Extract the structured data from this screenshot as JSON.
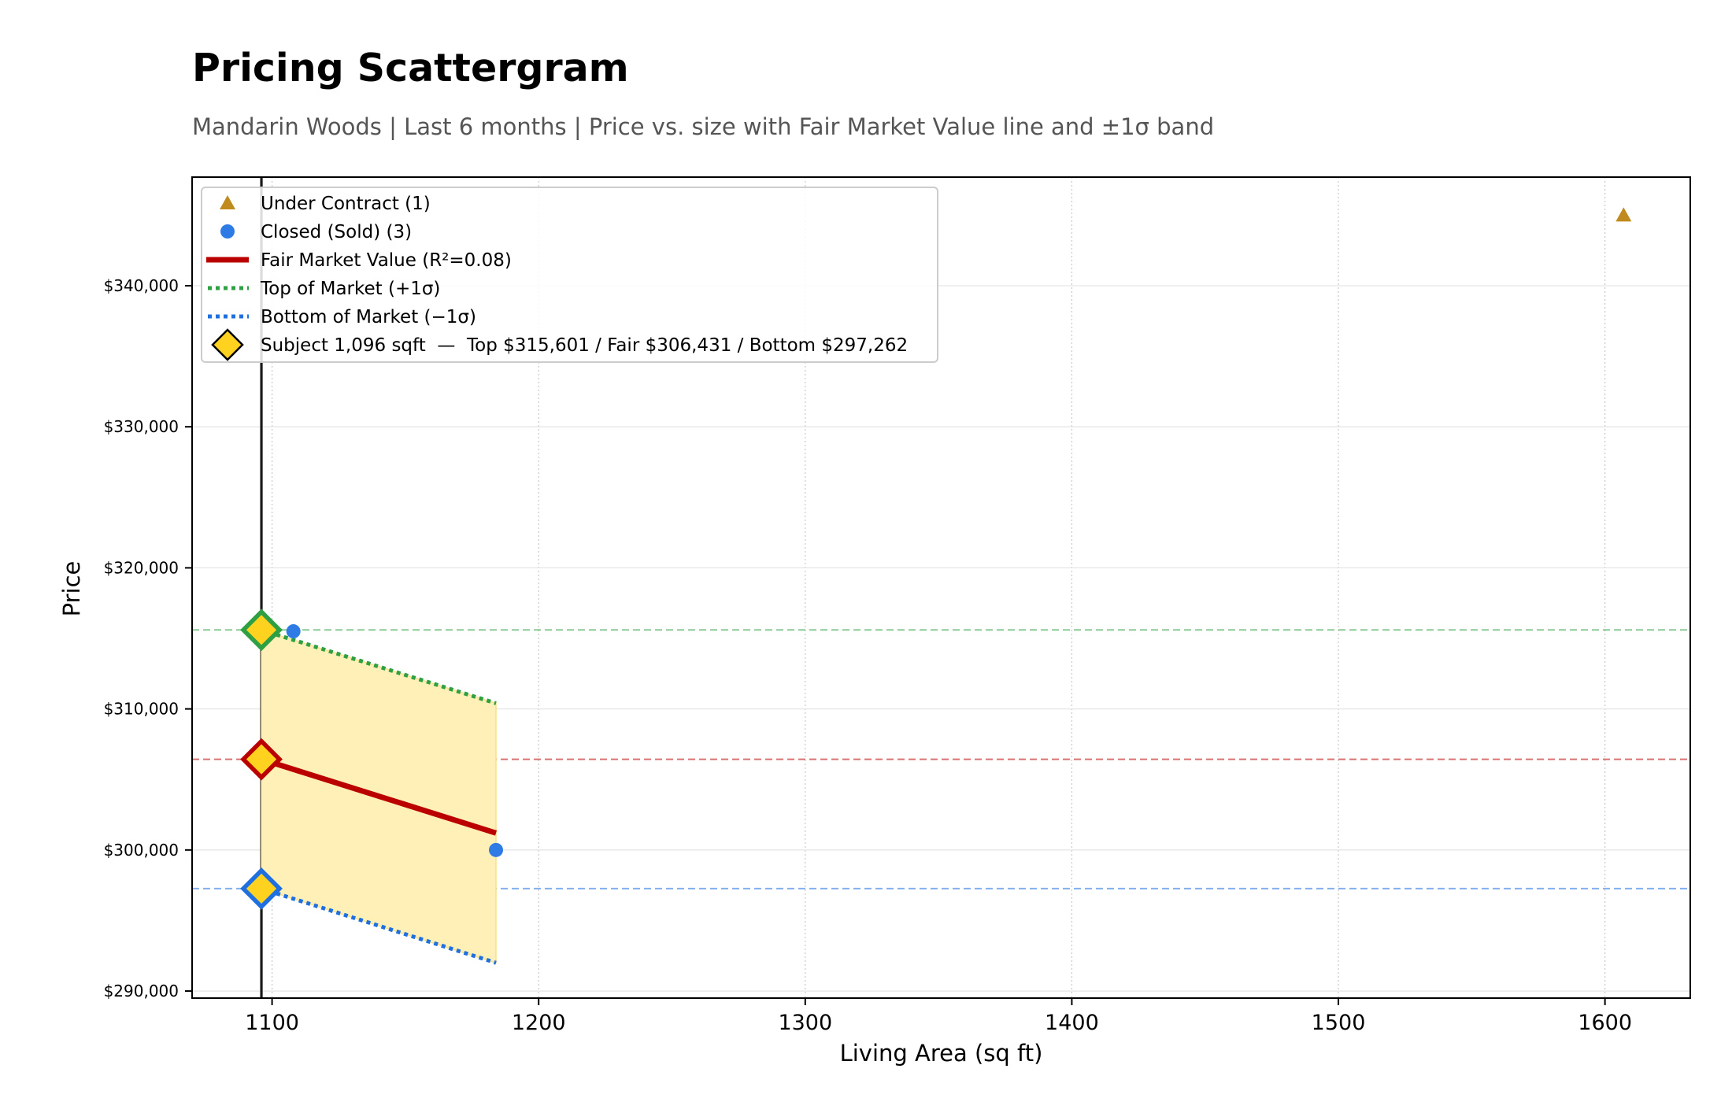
{
  "header": {
    "title": "Pricing Scattergram",
    "subtitle": "Mandarin Woods  |  Last 6 months  |  Price vs. size with Fair Market Value line and ±1σ band"
  },
  "colors": {
    "under_contract": "#c08a1e",
    "closed": "#2f7be6",
    "fair": "#bb0000",
    "top": "#2ea043",
    "bottom": "#1f6fe0",
    "subject_fill": "#ffd21f",
    "band": "#fff0b8"
  },
  "chart_data": {
    "type": "scatter",
    "title": "Pricing Scattergram",
    "xlabel": "Living Area (sq ft)",
    "ylabel": "Price",
    "xlim": [
      1070,
      1632
    ],
    "ylim": [
      289500,
      347700
    ],
    "x_ticks": [
      1100,
      1200,
      1300,
      1400,
      1500,
      1600
    ],
    "y_ticks": [
      290000,
      300000,
      310000,
      320000,
      330000,
      340000
    ],
    "x_tick_labels": [
      "1100",
      "1200",
      "1300",
      "1400",
      "1500",
      "1600"
    ],
    "y_tick_labels": [
      "$290,000",
      "$300,000",
      "$310,000",
      "$320,000",
      "$330,000",
      "$340,000"
    ],
    "grid": true,
    "legend_position": "top-left",
    "series": [
      {
        "name": "Under Contract (1)",
        "kind": "scatter",
        "marker": "triangle",
        "points": [
          {
            "x": 1607,
            "y": 345000
          }
        ]
      },
      {
        "name": "Closed (Sold) (3)",
        "kind": "scatter",
        "marker": "circle",
        "points": [
          {
            "x": 1108,
            "y": 315500
          },
          {
            "x": 1184,
            "y": 300000
          },
          {
            "x": 1096,
            "y": 306431
          }
        ]
      },
      {
        "name": "Fair Market Value (R²=0.08)",
        "kind": "line",
        "style": "solid",
        "points": [
          {
            "x": 1096,
            "y": 306431
          },
          {
            "x": 1184,
            "y": 301200
          }
        ]
      },
      {
        "name": "Top of Market (+1σ)",
        "kind": "line",
        "style": "dotted",
        "points": [
          {
            "x": 1096,
            "y": 315601
          },
          {
            "x": 1184,
            "y": 310400
          }
        ]
      },
      {
        "name": "Bottom of Market (−1σ)",
        "kind": "line",
        "style": "dotted",
        "points": [
          {
            "x": 1096,
            "y": 297262
          },
          {
            "x": 1184,
            "y": 292000
          }
        ]
      }
    ],
    "subject": {
      "label": "Subject 1,096 sqft  —  Top $315,601 / Fair $306,431 / Bottom $297,262",
      "x": 1096,
      "top": 315601,
      "fair": 306431,
      "bottom": 297262
    }
  }
}
